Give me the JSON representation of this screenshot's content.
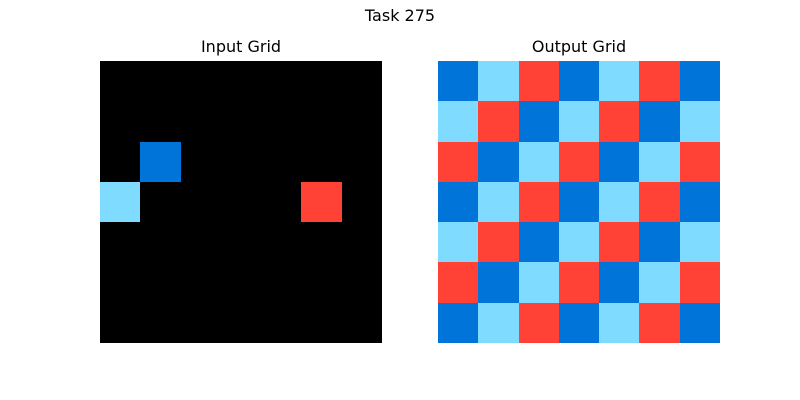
{
  "title": "Task 275",
  "palette": {
    "0": "#000000",
    "1": "#0074d9",
    "2": "#ff4136",
    "8": "#7fdbff"
  },
  "input": {
    "label": "Input Grid",
    "grid": [
      [
        0,
        0,
        0,
        0,
        0,
        0,
        0
      ],
      [
        0,
        0,
        0,
        0,
        0,
        0,
        0
      ],
      [
        0,
        1,
        0,
        0,
        0,
        0,
        0
      ],
      [
        8,
        0,
        0,
        0,
        0,
        2,
        0
      ],
      [
        0,
        0,
        0,
        0,
        0,
        0,
        0
      ],
      [
        0,
        0,
        0,
        0,
        0,
        0,
        0
      ],
      [
        0,
        0,
        0,
        0,
        0,
        0,
        0
      ]
    ]
  },
  "output": {
    "label": "Output Grid",
    "grid": [
      [
        1,
        8,
        2,
        1,
        8,
        2,
        1
      ],
      [
        8,
        2,
        1,
        8,
        2,
        1,
        8
      ],
      [
        2,
        1,
        8,
        2,
        1,
        8,
        2
      ],
      [
        1,
        8,
        2,
        1,
        8,
        2,
        1
      ],
      [
        8,
        2,
        1,
        8,
        2,
        1,
        8
      ],
      [
        2,
        1,
        8,
        2,
        1,
        8,
        2
      ],
      [
        1,
        8,
        2,
        1,
        8,
        2,
        1
      ]
    ]
  }
}
